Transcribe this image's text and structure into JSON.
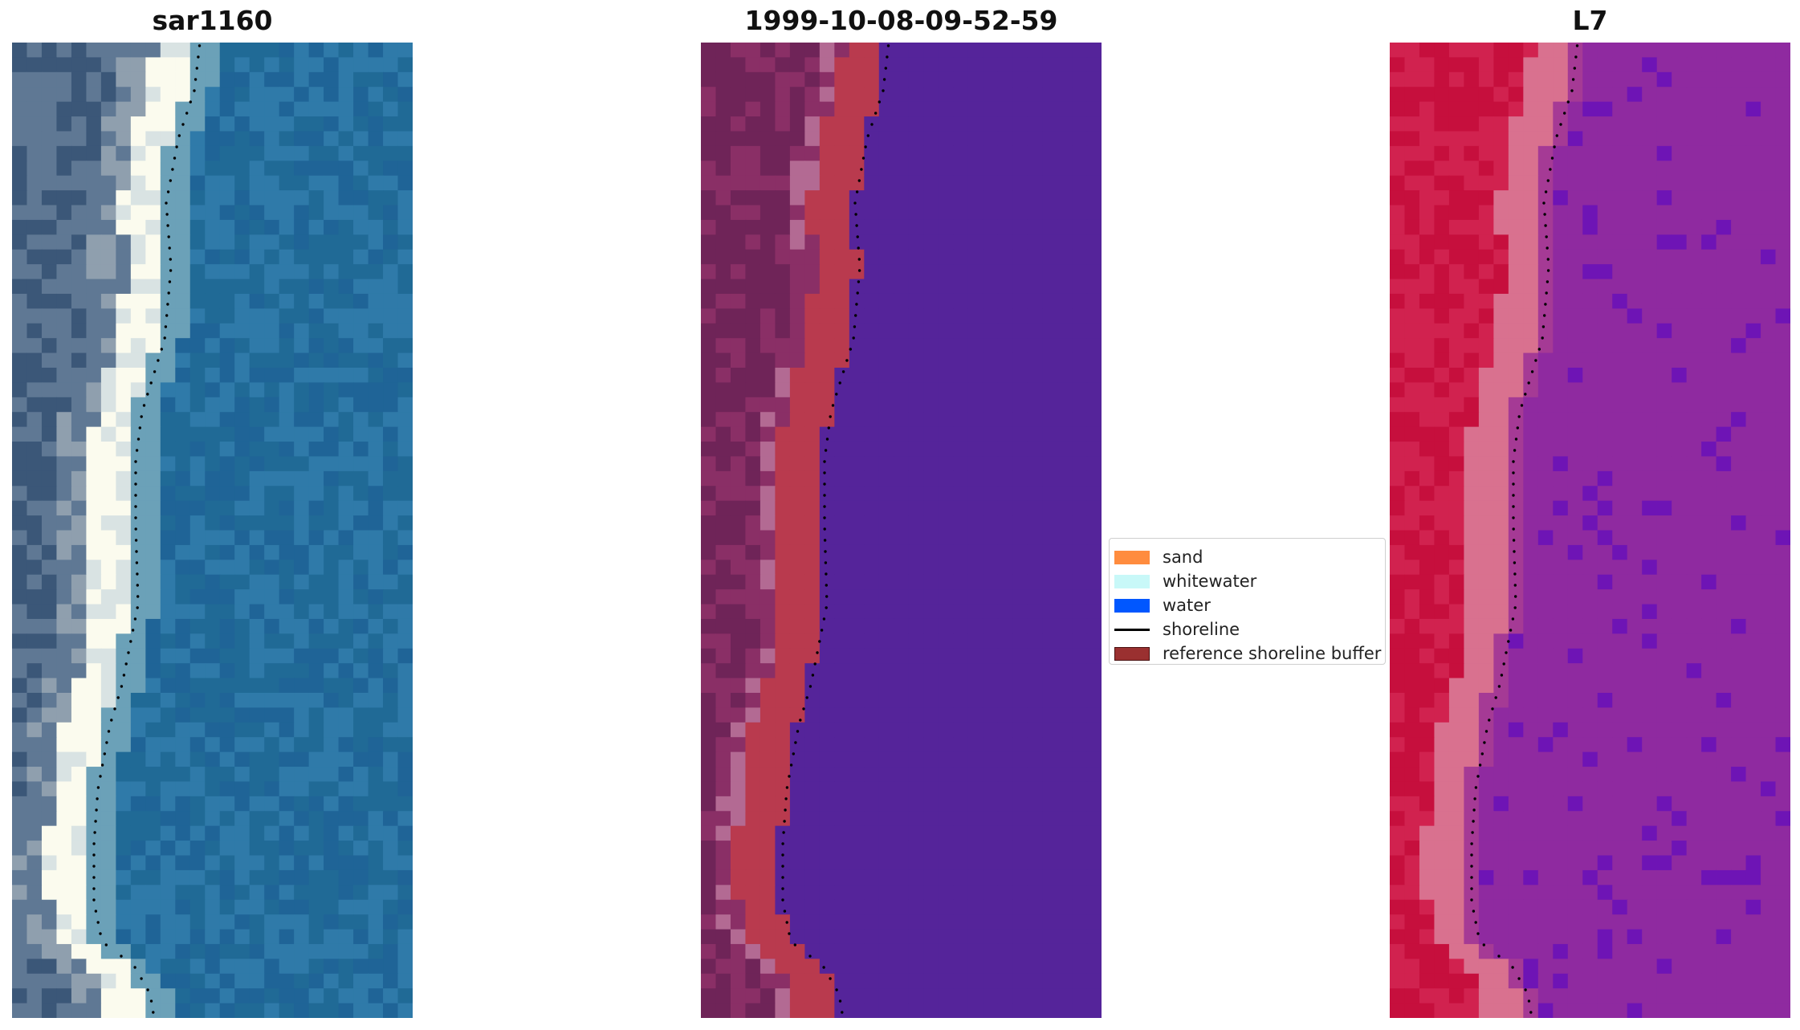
{
  "panels": [
    {
      "title": "sar1160",
      "palette": [
        "#3b5778",
        "#5f7894",
        "#8f9fae",
        "#d9e3e3",
        "#fbfbee",
        "#6ba1b8",
        "#2f7aa9",
        "#206a96",
        "#1f6497"
      ]
    },
    {
      "title": "1999-10-08-09-52-59",
      "palette": [
        "#6f2458",
        "#8a2f66",
        "#b36a93",
        "#b93a4e",
        "#55249a"
      ]
    },
    {
      "title": "L7",
      "palette": [
        "#c60f3d",
        "#d1224f",
        "#d9718f",
        "#a53a95",
        "#8f2aa0",
        "#6e14b5"
      ]
    }
  ],
  "legend": {
    "items": [
      {
        "label": "sand",
        "color": "#ff8c3e"
      },
      {
        "label": "whitewater",
        "color": "#c8f8f8"
      },
      {
        "label": "water",
        "color": "#0057ff"
      },
      {
        "label": "shoreline",
        "color": "#000000"
      },
      {
        "label": "reference shoreline buffer",
        "color": "#9a3030"
      }
    ]
  }
}
